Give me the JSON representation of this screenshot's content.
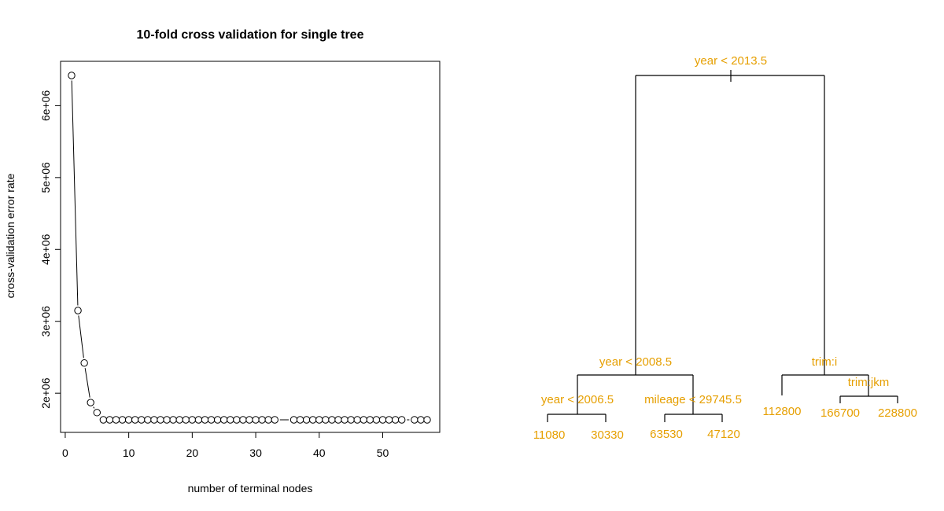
{
  "chart_data": [
    {
      "type": "line",
      "title": "10-fold cross validation for single tree",
      "xlabel": "number of terminal nodes",
      "ylabel": "cross-validation error rate",
      "xlim": [
        0,
        57
      ],
      "ylim": [
        1600000,
        6400000
      ],
      "x_ticks": [
        0,
        10,
        20,
        30,
        40,
        50
      ],
      "x_tick_labels": [
        "0",
        "10",
        "20",
        "30",
        "40",
        "50"
      ],
      "y_ticks": [
        2000000,
        3000000,
        4000000,
        5000000,
        6000000
      ],
      "y_tick_labels": [
        "2e+06",
        "3e+06",
        "4e+06",
        "5e+06",
        "6e+06"
      ],
      "points": [
        [
          1,
          6420000
        ],
        [
          2,
          3150000
        ],
        [
          3,
          2420000
        ],
        [
          4,
          1870000
        ],
        [
          5,
          1730000
        ],
        [
          6,
          1630000
        ],
        [
          7,
          1630000
        ],
        [
          8,
          1630000
        ],
        [
          9,
          1630000
        ],
        [
          10,
          1630000
        ],
        [
          11,
          1630000
        ],
        [
          12,
          1630000
        ],
        [
          13,
          1630000
        ],
        [
          14,
          1630000
        ],
        [
          15,
          1630000
        ],
        [
          16,
          1630000
        ],
        [
          17,
          1630000
        ],
        [
          18,
          1630000
        ],
        [
          19,
          1630000
        ],
        [
          20,
          1630000
        ],
        [
          21,
          1630000
        ],
        [
          22,
          1630000
        ],
        [
          23,
          1630000
        ],
        [
          24,
          1630000
        ],
        [
          25,
          1630000
        ],
        [
          26,
          1630000
        ],
        [
          27,
          1630000
        ],
        [
          28,
          1630000
        ],
        [
          29,
          1630000
        ],
        [
          30,
          1630000
        ],
        [
          31,
          1630000
        ],
        [
          32,
          1630000
        ],
        [
          33,
          1630000
        ],
        [
          36,
          1630000
        ],
        [
          37,
          1630000
        ],
        [
          38,
          1630000
        ],
        [
          39,
          1630000
        ],
        [
          40,
          1630000
        ],
        [
          41,
          1630000
        ],
        [
          42,
          1630000
        ],
        [
          43,
          1630000
        ],
        [
          44,
          1630000
        ],
        [
          45,
          1630000
        ],
        [
          46,
          1630000
        ],
        [
          47,
          1630000
        ],
        [
          48,
          1630000
        ],
        [
          49,
          1630000
        ],
        [
          50,
          1630000
        ],
        [
          51,
          1630000
        ],
        [
          52,
          1630000
        ],
        [
          53,
          1630000
        ],
        [
          55,
          1630000
        ],
        [
          56,
          1630000
        ],
        [
          57,
          1630000
        ]
      ],
      "grid": false
    },
    {
      "type": "tree",
      "text_color": "#E69F00",
      "line_color": "#000000",
      "splits": [
        {
          "id": "root",
          "label": "year < 2013.5"
        },
        {
          "id": "left",
          "label": "year < 2008.5"
        },
        {
          "id": "right",
          "label": "trim:i"
        },
        {
          "id": "leftleft",
          "label": "year < 2006.5"
        },
        {
          "id": "leftright",
          "label": "mileage < 29745.5"
        },
        {
          "id": "rightright",
          "label": "trim:jkm"
        }
      ],
      "leaves": [
        {
          "id": "l1",
          "label": "11080"
        },
        {
          "id": "l2",
          "label": "30330"
        },
        {
          "id": "l3",
          "label": "63530"
        },
        {
          "id": "l4",
          "label": "47120"
        },
        {
          "id": "l5",
          "label": "112800"
        },
        {
          "id": "l6",
          "label": "166700"
        },
        {
          "id": "l7",
          "label": "228800"
        }
      ]
    }
  ]
}
